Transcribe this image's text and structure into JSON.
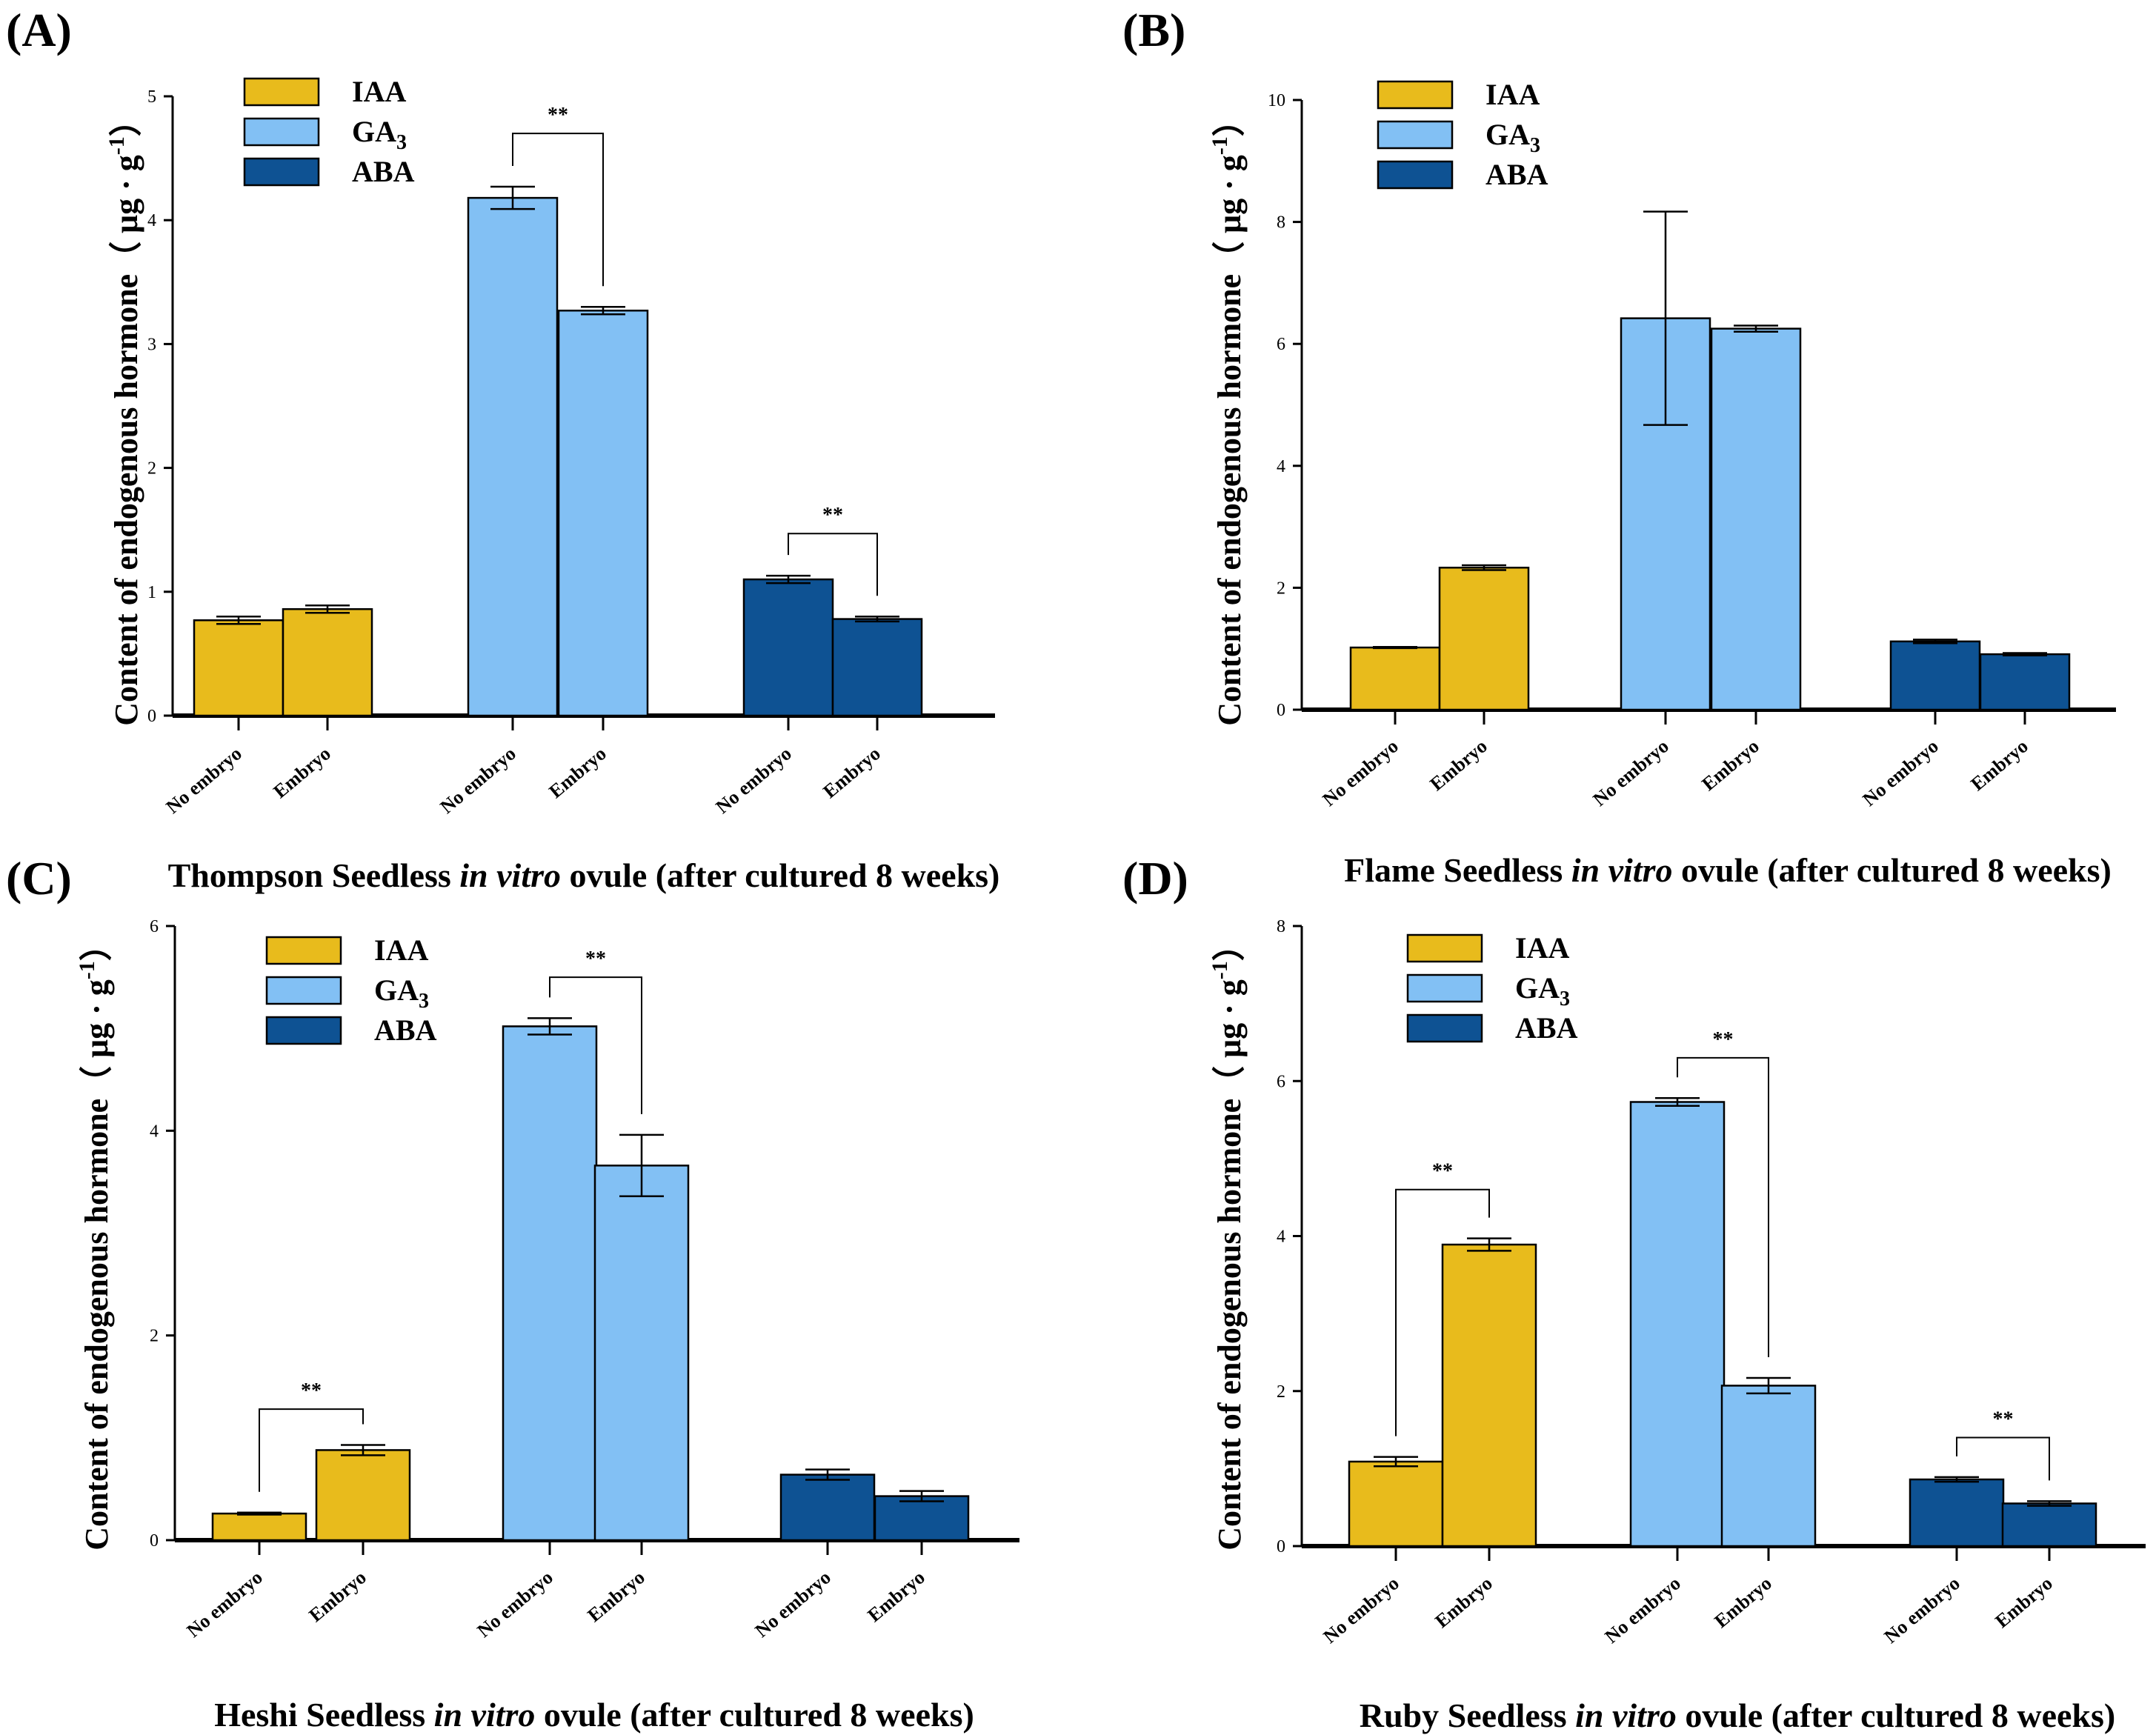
{
  "colors": {
    "IAA": "#E8BB1C",
    "GA3": "#82C0F4",
    "ABA": "#0E5293",
    "axis": "#000000"
  },
  "legend": [
    {
      "key": "IAA",
      "label": "IAA",
      "sub": ""
    },
    {
      "key": "GA3",
      "label": "GA",
      "sub": "3"
    },
    {
      "key": "ABA",
      "label": "ABA",
      "sub": ""
    }
  ],
  "chart_data": [
    {
      "panel_label": "(A)",
      "type": "bar",
      "title_parts": [
        "Thompson Seedless ",
        "in vitro",
        " ovule (after cultured 8 weeks)"
      ],
      "ylabel_main": "Content of endogenous hormone",
      "ylabel_unit": "（ μg · g",
      "ylabel_sup": "-1",
      "ylabel_close": "）",
      "ylim": [
        0,
        5
      ],
      "yticks": [
        "0",
        "1",
        "2",
        "3",
        "4",
        "5"
      ],
      "categories": [
        "No embryo",
        "Embryo"
      ],
      "groups": [
        {
          "hormone": "IAA",
          "values": [
            0.77,
            0.86
          ],
          "errors": [
            0.03,
            0.03
          ]
        },
        {
          "hormone": "GA3",
          "values": [
            4.18,
            3.27
          ],
          "errors": [
            0.09,
            0.03
          ]
        },
        {
          "hormone": "ABA",
          "values": [
            1.1,
            0.78
          ],
          "errors": [
            0.03,
            0.02
          ]
        }
      ],
      "significance": [
        {
          "group": 1,
          "label": "**",
          "top": 4.7
        },
        {
          "group": 2,
          "label": "**",
          "top": 1.47
        }
      ]
    },
    {
      "panel_label": "(B)",
      "type": "bar",
      "title_parts": [
        "Flame Seedless ",
        "in vitro",
        " ovule (after cultured 8 weeks)"
      ],
      "ylabel_main": "Content of endogenous hormone",
      "ylabel_unit": "（ μg · g",
      "ylabel_sup": "-1",
      "ylabel_close": "）",
      "ylim": [
        0,
        10
      ],
      "yticks": [
        "0",
        "2",
        "4",
        "6",
        "8",
        "10"
      ],
      "categories": [
        "No embryo",
        "Embryo"
      ],
      "groups": [
        {
          "hormone": "IAA",
          "values": [
            1.02,
            2.33
          ],
          "errors": [
            0.01,
            0.04
          ]
        },
        {
          "hormone": "GA3",
          "values": [
            6.42,
            6.25
          ],
          "errors": [
            1.75,
            0.05
          ]
        },
        {
          "hormone": "ABA",
          "values": [
            1.12,
            0.91
          ],
          "errors": [
            0.03,
            0.02
          ]
        }
      ],
      "significance": []
    },
    {
      "panel_label": "(C)",
      "type": "bar",
      "title_parts": [
        "Heshi Seedless ",
        "in vitro",
        " ovule (after cultured 8 weeks)"
      ],
      "ylabel_main": "Content of endogenous hormone",
      "ylabel_unit": "（ μg · g",
      "ylabel_sup": "-1",
      "ylabel_close": "）",
      "ylim": [
        0,
        6
      ],
      "yticks": [
        "0",
        "2",
        "4",
        "6"
      ],
      "categories": [
        "No embryo",
        "Embryo"
      ],
      "groups": [
        {
          "hormone": "IAA",
          "values": [
            0.26,
            0.88
          ],
          "errors": [
            0.01,
            0.05
          ]
        },
        {
          "hormone": "GA3",
          "values": [
            5.02,
            3.66
          ],
          "errors": [
            0.08,
            0.3
          ]
        },
        {
          "hormone": "ABA",
          "values": [
            0.64,
            0.43
          ],
          "errors": [
            0.05,
            0.05
          ]
        }
      ],
      "significance": [
        {
          "group": 0,
          "label": "**",
          "top": 1.28
        },
        {
          "group": 1,
          "label": "**",
          "top": 5.5
        }
      ]
    },
    {
      "panel_label": "(D)",
      "type": "bar",
      "title_parts": [
        "Ruby Seedless ",
        "in vitro",
        " ovule (after cultured 8 weeks)"
      ],
      "ylabel_main": "Content of endogenous hormone",
      "ylabel_unit": "（ μg · g",
      "ylabel_sup": "-1",
      "ylabel_close": "）",
      "ylim": [
        0,
        8
      ],
      "yticks": [
        "0",
        "2",
        "4",
        "6",
        "8"
      ],
      "categories": [
        "No embryo",
        "Embryo"
      ],
      "groups": [
        {
          "hormone": "IAA",
          "values": [
            1.09,
            3.89
          ],
          "errors": [
            0.06,
            0.08
          ]
        },
        {
          "hormone": "GA3",
          "values": [
            5.73,
            2.07
          ],
          "errors": [
            0.05,
            0.1
          ]
        },
        {
          "hormone": "ABA",
          "values": [
            0.86,
            0.55
          ],
          "errors": [
            0.03,
            0.03
          ]
        }
      ],
      "significance": [
        {
          "group": 0,
          "label": "**",
          "top": 4.6
        },
        {
          "group": 1,
          "label": "**",
          "top": 6.3
        },
        {
          "group": 2,
          "label": "**",
          "top": 1.4
        }
      ]
    }
  ]
}
